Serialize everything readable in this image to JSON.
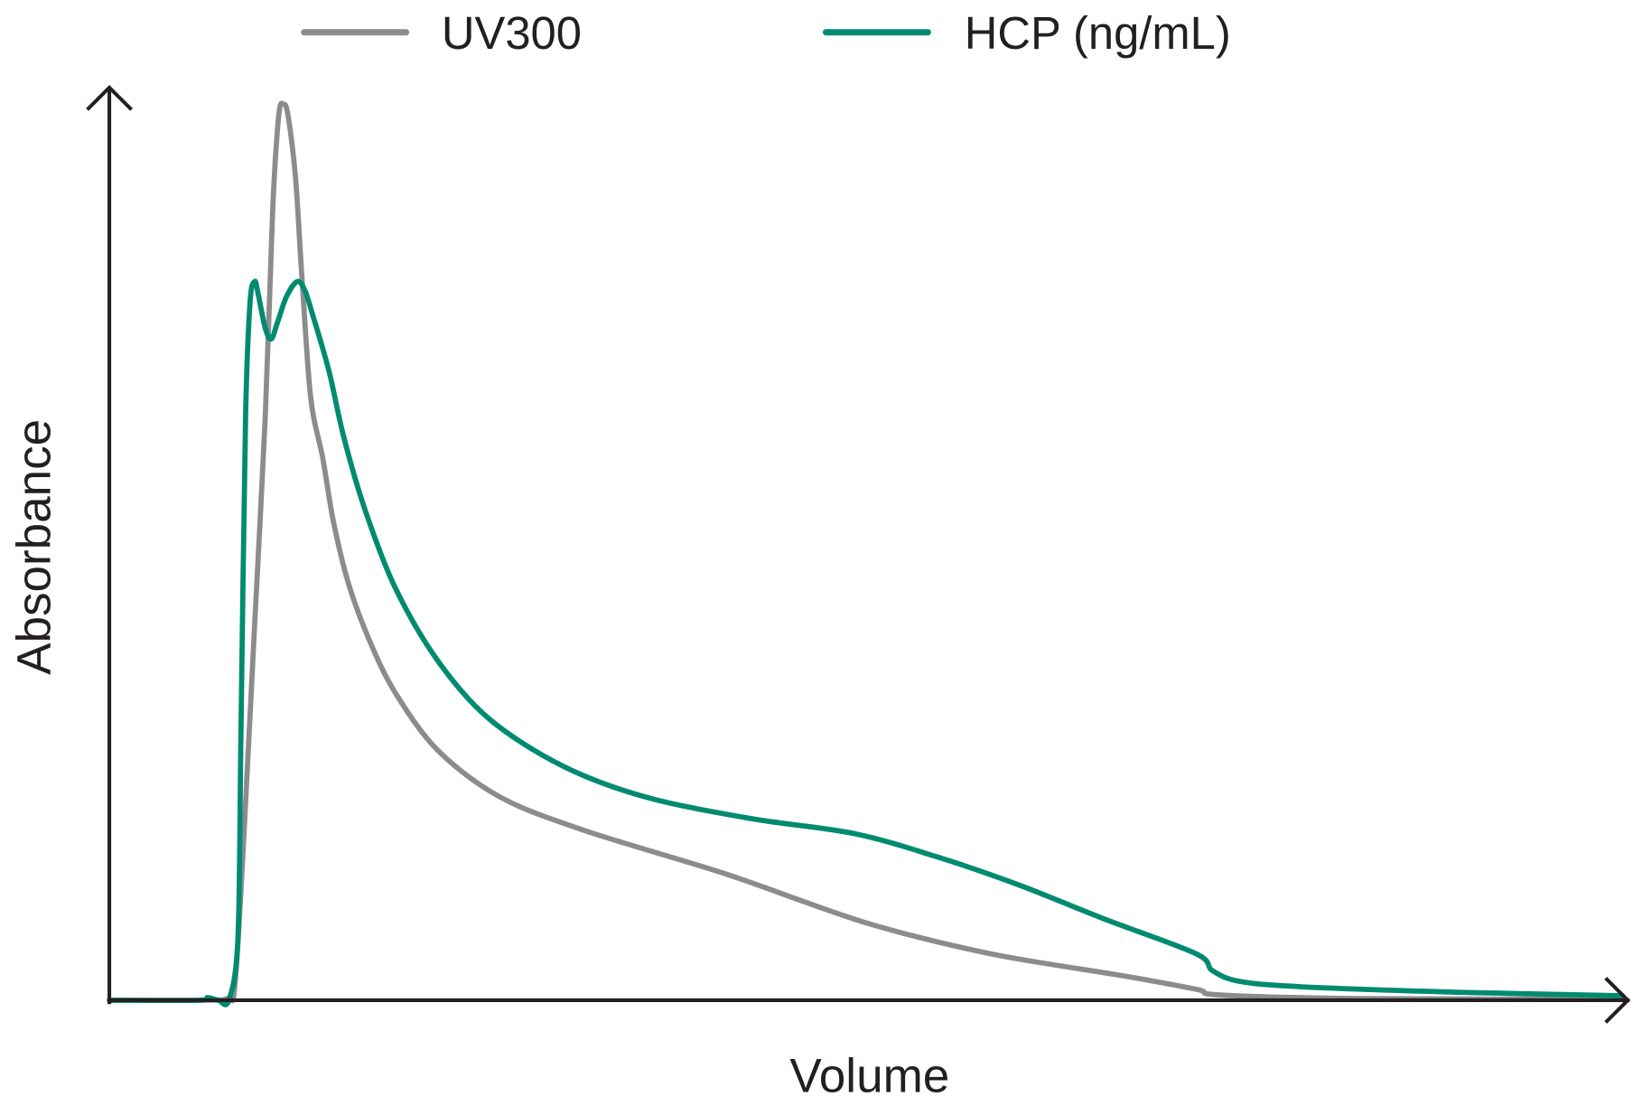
{
  "chart_data": {
    "type": "line",
    "title": "",
    "xlabel": "Volume",
    "ylabel": "Absorbance",
    "xlim": [
      0,
      100
    ],
    "ylim": [
      0,
      100
    ],
    "grid": false,
    "ticks": false,
    "legend_position": "top",
    "series": [
      {
        "name": "UV300",
        "color": "#8c8c8e",
        "x": [
          0,
          5.9,
          7.8,
          8.3,
          8.9,
          9.6,
          10.3,
          10.8,
          11.2,
          11.5,
          11.8,
          12.3,
          12.7,
          13.3,
          14.1,
          14.8,
          15.8,
          17.2,
          18.9,
          21.7,
          25.8,
          31.3,
          40.9,
          49.9,
          58.2,
          67.1,
          71.9,
          73.3,
          82.2,
          100
        ],
        "y": [
          0,
          0,
          0.2,
          1.7,
          18.6,
          41.9,
          65.1,
          88.4,
          98.8,
          100,
          98.8,
          91.9,
          81.4,
          67.4,
          60.5,
          53.5,
          46.5,
          40.1,
          34.3,
          27.9,
          22.7,
          19.0,
          14.0,
          8.7,
          5.2,
          2.7,
          1.2,
          0.6,
          0.2,
          0.1
        ]
      },
      {
        "name": "HCP (ng/mL)",
        "color": "#008b70",
        "x": [
          0,
          5.9,
          6.5,
          7.2,
          7.9,
          8.5,
          8.7,
          9.0,
          9.3,
          9.6,
          9.8,
          10.3,
          10.7,
          11.1,
          11.7,
          12.4,
          12.9,
          13.4,
          14.5,
          15.5,
          16.9,
          18.9,
          21.7,
          25.1,
          29.9,
          35.4,
          42.3,
          49.2,
          54.7,
          60.2,
          65.7,
          71.8,
          72.9,
          74.7,
          78.8,
          89.1,
          100
        ],
        "y": [
          0,
          0,
          0.3,
          0,
          0,
          7.0,
          30.2,
          65.1,
          77.9,
          80.2,
          79.1,
          75.0,
          73.8,
          75.6,
          78.5,
          80.2,
          79.3,
          76.7,
          70.3,
          62.8,
          54.7,
          46.0,
          37.9,
          31.4,
          26.2,
          22.7,
          20.3,
          18.6,
          16.0,
          12.8,
          9.1,
          5.2,
          3.3,
          2.1,
          1.5,
          0.9,
          0.5
        ]
      }
    ]
  }
}
